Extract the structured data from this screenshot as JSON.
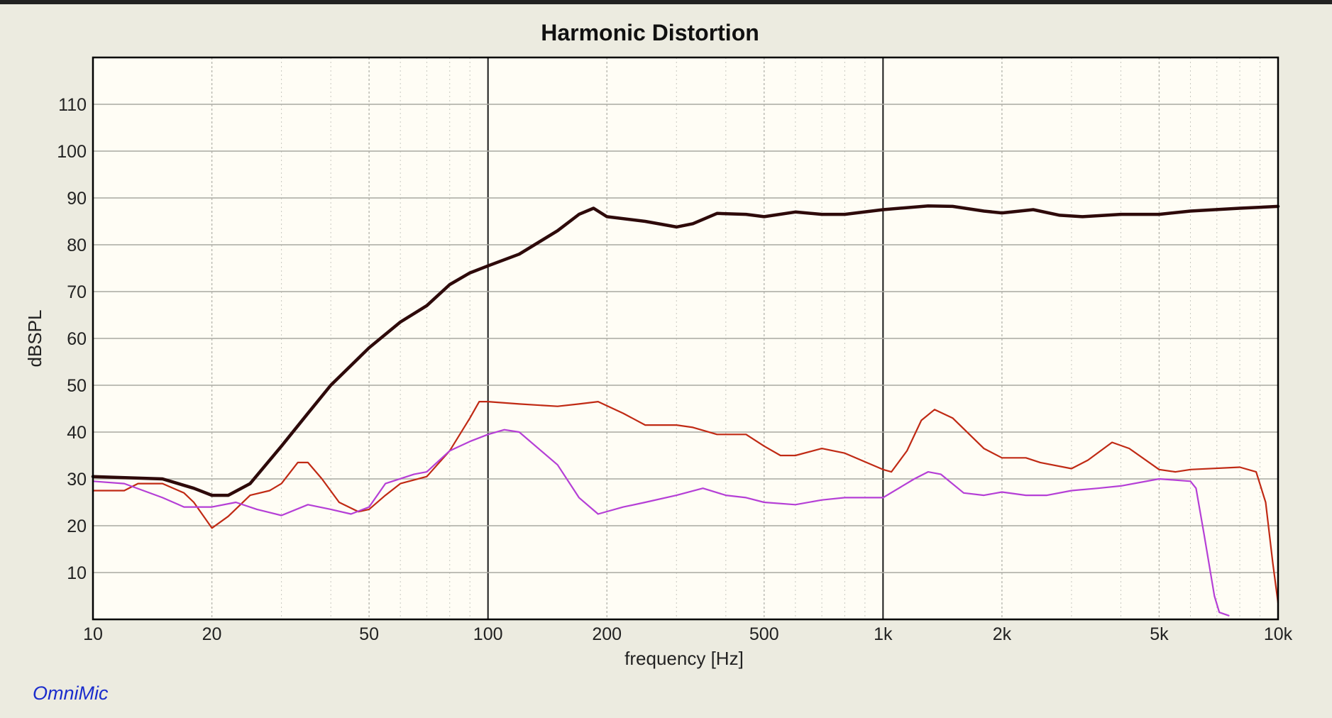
{
  "chart_data": {
    "type": "line",
    "title": "Harmonic Distortion",
    "xlabel": "frequency [Hz]",
    "ylabel": "dBSPL",
    "x_scale": "log",
    "xlim": [
      10,
      10000
    ],
    "ylim": [
      0,
      120
    ],
    "grid": true,
    "x_ticks": [
      {
        "value": 10,
        "label": "10"
      },
      {
        "value": 20,
        "label": "20"
      },
      {
        "value": 50,
        "label": "50"
      },
      {
        "value": 100,
        "label": "100"
      },
      {
        "value": 200,
        "label": "200"
      },
      {
        "value": 500,
        "label": "500"
      },
      {
        "value": 1000,
        "label": "1k"
      },
      {
        "value": 2000,
        "label": "2k"
      },
      {
        "value": 5000,
        "label": "5k"
      },
      {
        "value": 10000,
        "label": "10k"
      }
    ],
    "y_ticks": [
      {
        "value": 10,
        "label": "10"
      },
      {
        "value": 20,
        "label": "20"
      },
      {
        "value": 30,
        "label": "30"
      },
      {
        "value": 40,
        "label": "40"
      },
      {
        "value": 50,
        "label": "50"
      },
      {
        "value": 60,
        "label": "60"
      },
      {
        "value": 70,
        "label": "70"
      },
      {
        "value": 80,
        "label": "80"
      },
      {
        "value": 90,
        "label": "90"
      },
      {
        "value": 100,
        "label": "100"
      },
      {
        "value": 110,
        "label": "110"
      }
    ],
    "series": [
      {
        "color": "#2e0a0a",
        "points": [
          [
            10,
            30.5
          ],
          [
            15,
            30
          ],
          [
            18,
            28
          ],
          [
            20,
            26.5
          ],
          [
            22,
            26.5
          ],
          [
            25,
            29
          ],
          [
            30,
            37
          ],
          [
            35,
            44
          ],
          [
            40,
            50
          ],
          [
            50,
            58
          ],
          [
            60,
            63.5
          ],
          [
            70,
            67
          ],
          [
            80,
            71.5
          ],
          [
            90,
            74
          ],
          [
            100,
            75.5
          ],
          [
            120,
            78
          ],
          [
            150,
            83
          ],
          [
            170,
            86.5
          ],
          [
            185,
            87.8
          ],
          [
            200,
            86
          ],
          [
            250,
            85
          ],
          [
            300,
            83.8
          ],
          [
            330,
            84.5
          ],
          [
            380,
            86.7
          ],
          [
            450,
            86.5
          ],
          [
            500,
            86
          ],
          [
            600,
            87
          ],
          [
            700,
            86.5
          ],
          [
            800,
            86.5
          ],
          [
            1000,
            87.5
          ],
          [
            1300,
            88.3
          ],
          [
            1500,
            88.2
          ],
          [
            1800,
            87.2
          ],
          [
            2000,
            86.8
          ],
          [
            2400,
            87.5
          ],
          [
            2800,
            86.3
          ],
          [
            3200,
            86
          ],
          [
            4000,
            86.5
          ],
          [
            5000,
            86.5
          ],
          [
            6000,
            87.2
          ],
          [
            8000,
            87.8
          ],
          [
            10000,
            88.2
          ]
        ]
      },
      {
        "color": "#c02a14",
        "points": [
          [
            10,
            27.5
          ],
          [
            12,
            27.5
          ],
          [
            13,
            29
          ],
          [
            15,
            29
          ],
          [
            17,
            27
          ],
          [
            18,
            25
          ],
          [
            20,
            19.5
          ],
          [
            22,
            22
          ],
          [
            25,
            26.5
          ],
          [
            28,
            27.5
          ],
          [
            30,
            29
          ],
          [
            33,
            33.5
          ],
          [
            35,
            33.5
          ],
          [
            38,
            30
          ],
          [
            42,
            25
          ],
          [
            47,
            23
          ],
          [
            50,
            23.5
          ],
          [
            55,
            26.5
          ],
          [
            60,
            29
          ],
          [
            70,
            30.5
          ],
          [
            80,
            36
          ],
          [
            90,
            43
          ],
          [
            95,
            46.5
          ],
          [
            100,
            46.5
          ],
          [
            120,
            46
          ],
          [
            150,
            45.5
          ],
          [
            170,
            46
          ],
          [
            190,
            46.5
          ],
          [
            220,
            44
          ],
          [
            250,
            41.5
          ],
          [
            300,
            41.5
          ],
          [
            330,
            41
          ],
          [
            380,
            39.5
          ],
          [
            450,
            39.5
          ],
          [
            500,
            37
          ],
          [
            550,
            35
          ],
          [
            600,
            35
          ],
          [
            700,
            36.5
          ],
          [
            800,
            35.5
          ],
          [
            1000,
            32
          ],
          [
            1050,
            31.5
          ],
          [
            1150,
            36
          ],
          [
            1250,
            42.5
          ],
          [
            1350,
            44.8
          ],
          [
            1500,
            43
          ],
          [
            1800,
            36.5
          ],
          [
            2000,
            34.5
          ],
          [
            2300,
            34.5
          ],
          [
            2500,
            33.5
          ],
          [
            3000,
            32.2
          ],
          [
            3300,
            34
          ],
          [
            3800,
            37.8
          ],
          [
            4200,
            36.5
          ],
          [
            5000,
            32
          ],
          [
            5500,
            31.5
          ],
          [
            6000,
            32
          ],
          [
            8000,
            32.5
          ],
          [
            8800,
            31.5
          ],
          [
            9300,
            25
          ],
          [
            9700,
            12
          ],
          [
            10000,
            3.5
          ]
        ]
      },
      {
        "color": "#b53fd6",
        "points": [
          [
            10,
            29.5
          ],
          [
            12,
            29
          ],
          [
            15,
            26
          ],
          [
            17,
            24
          ],
          [
            20,
            24
          ],
          [
            23,
            25
          ],
          [
            26,
            23.5
          ],
          [
            30,
            22.2
          ],
          [
            35,
            24.5
          ],
          [
            40,
            23.5
          ],
          [
            45,
            22.5
          ],
          [
            50,
            24
          ],
          [
            55,
            29
          ],
          [
            65,
            31
          ],
          [
            70,
            31.5
          ],
          [
            80,
            36
          ],
          [
            90,
            38
          ],
          [
            100,
            39.5
          ],
          [
            110,
            40.5
          ],
          [
            120,
            40
          ],
          [
            150,
            33
          ],
          [
            170,
            26
          ],
          [
            190,
            22.5
          ],
          [
            220,
            24
          ],
          [
            250,
            25
          ],
          [
            300,
            26.5
          ],
          [
            350,
            28
          ],
          [
            400,
            26.5
          ],
          [
            450,
            26
          ],
          [
            500,
            25
          ],
          [
            600,
            24.5
          ],
          [
            700,
            25.5
          ],
          [
            800,
            26
          ],
          [
            900,
            26
          ],
          [
            1000,
            26
          ],
          [
            1200,
            30
          ],
          [
            1300,
            31.5
          ],
          [
            1400,
            31
          ],
          [
            1600,
            27
          ],
          [
            1800,
            26.5
          ],
          [
            2000,
            27.2
          ],
          [
            2300,
            26.5
          ],
          [
            2600,
            26.5
          ],
          [
            3000,
            27.5
          ],
          [
            3500,
            28
          ],
          [
            4000,
            28.5
          ],
          [
            5000,
            30
          ],
          [
            6000,
            29.5
          ],
          [
            6200,
            28
          ],
          [
            6500,
            18
          ],
          [
            6900,
            5
          ],
          [
            7100,
            1.5
          ],
          [
            7500,
            0.8
          ]
        ]
      }
    ]
  },
  "branding": {
    "logo_text": "OmniMic"
  }
}
